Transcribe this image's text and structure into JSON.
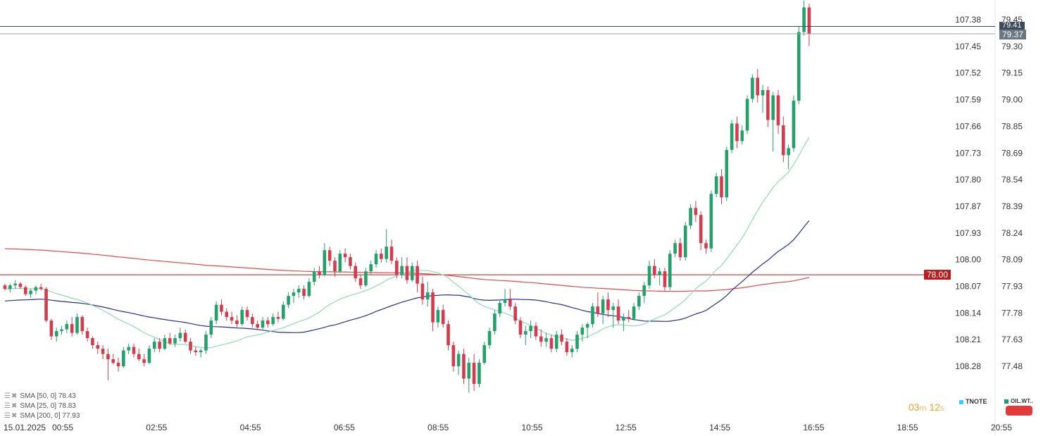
{
  "chart_data": {
    "type": "candlestick",
    "date_label": "15.01.2025",
    "x_ticks": [
      "00:55",
      "02:55",
      "04:55",
      "06:55",
      "08:55",
      "10:55",
      "12:55",
      "14:55",
      "16:55",
      "18:55",
      "20:55"
    ],
    "left_axis": {
      "ticks": [
        "107.38",
        "107.45",
        "107.52",
        "107.59",
        "107.66",
        "107.73",
        "107.80",
        "107.87",
        "107.93",
        "108.00",
        "108.07",
        "108.14",
        "108.21",
        "108.28"
      ],
      "inverted": true
    },
    "right_axis": {
      "ticks": [
        "79.45",
        "79.30",
        "79.15",
        "79.00",
        "78.85",
        "78.69",
        "78.54",
        "78.39",
        "78.24",
        "78.09",
        "77.93",
        "77.78",
        "77.63",
        "77.48"
      ],
      "ylim": [
        77.33,
        79.56
      ]
    },
    "last_price_labels": [
      "79.41",
      "79.37"
    ],
    "horizontal_level": "78.00",
    "indicators": [
      {
        "label": "SMA [50, 0] 78.43",
        "period": 50,
        "value": 78.43,
        "color": "#2a2f8a"
      },
      {
        "label": "SMA [25, 0] 78.83",
        "period": 25,
        "value": 78.83,
        "color": "#8fd9b6"
      },
      {
        "label": "SMA [200, 0] 77.93",
        "period": 200,
        "value": 77.93,
        "color": "#e04a4a"
      }
    ],
    "candles": [
      [
        77.94,
        77.95,
        77.91,
        77.92
      ],
      [
        77.92,
        77.95,
        77.9,
        77.94
      ],
      [
        77.94,
        77.97,
        77.92,
        77.95
      ],
      [
        77.95,
        77.96,
        77.92,
        77.93
      ],
      [
        77.93,
        77.94,
        77.88,
        77.89
      ],
      [
        77.89,
        77.92,
        77.87,
        77.91
      ],
      [
        77.91,
        77.94,
        77.89,
        77.93
      ],
      [
        77.93,
        77.95,
        77.91,
        77.92
      ],
      [
        77.92,
        77.93,
        77.73,
        77.74
      ],
      [
        77.74,
        77.75,
        77.63,
        77.65
      ],
      [
        77.65,
        77.7,
        77.62,
        77.68
      ],
      [
        77.68,
        77.71,
        77.66,
        77.69
      ],
      [
        77.69,
        77.74,
        77.67,
        77.72
      ],
      [
        77.72,
        77.76,
        77.65,
        77.67
      ],
      [
        77.67,
        77.78,
        77.66,
        77.76
      ],
      [
        77.76,
        77.77,
        77.66,
        77.68
      ],
      [
        77.68,
        77.7,
        77.62,
        77.64
      ],
      [
        77.64,
        77.65,
        77.58,
        77.6
      ],
      [
        77.6,
        77.62,
        77.55,
        77.58
      ],
      [
        77.58,
        77.6,
        77.52,
        77.55
      ],
      [
        77.55,
        77.58,
        77.4,
        77.52
      ],
      [
        77.52,
        77.55,
        77.49,
        77.5
      ],
      [
        77.5,
        77.53,
        77.45,
        77.48
      ],
      [
        77.48,
        77.59,
        77.47,
        77.57
      ],
      [
        77.57,
        77.61,
        77.55,
        77.59
      ],
      [
        77.59,
        77.61,
        77.53,
        77.55
      ],
      [
        77.55,
        77.58,
        77.51,
        77.52
      ],
      [
        77.52,
        77.55,
        77.48,
        77.5
      ],
      [
        77.5,
        77.6,
        77.49,
        77.58
      ],
      [
        77.58,
        77.64,
        77.56,
        77.62
      ],
      [
        77.62,
        77.64,
        77.56,
        77.58
      ],
      [
        77.58,
        77.66,
        77.57,
        77.64
      ],
      [
        77.64,
        77.67,
        77.6,
        77.61
      ],
      [
        77.61,
        77.66,
        77.59,
        77.64
      ],
      [
        77.64,
        77.7,
        77.62,
        77.67
      ],
      [
        77.67,
        77.69,
        77.61,
        77.62
      ],
      [
        77.62,
        77.64,
        77.55,
        77.57
      ],
      [
        77.57,
        77.59,
        77.54,
        77.56
      ],
      [
        77.56,
        77.58,
        77.53,
        77.57
      ],
      [
        77.57,
        77.68,
        77.55,
        77.66
      ],
      [
        77.66,
        77.76,
        77.64,
        77.74
      ],
      [
        77.74,
        77.85,
        77.72,
        77.83
      ],
      [
        77.83,
        77.86,
        77.77,
        77.79
      ],
      [
        77.79,
        77.81,
        77.74,
        77.76
      ],
      [
        77.76,
        77.79,
        77.72,
        77.74
      ],
      [
        77.74,
        77.77,
        77.7,
        77.72
      ],
      [
        77.72,
        77.82,
        77.71,
        77.8
      ],
      [
        77.8,
        77.82,
        77.74,
        77.76
      ],
      [
        77.76,
        77.78,
        77.7,
        77.72
      ],
      [
        77.72,
        77.74,
        77.69,
        77.7
      ],
      [
        77.7,
        77.76,
        77.69,
        77.74
      ],
      [
        77.74,
        77.76,
        77.7,
        77.72
      ],
      [
        77.72,
        77.78,
        77.71,
        77.76
      ],
      [
        77.76,
        77.79,
        77.73,
        77.75
      ],
      [
        77.75,
        77.85,
        77.74,
        77.83
      ],
      [
        77.83,
        77.9,
        77.81,
        77.88
      ],
      [
        77.88,
        77.92,
        77.84,
        77.9
      ],
      [
        77.9,
        77.94,
        77.87,
        77.92
      ],
      [
        77.92,
        77.94,
        77.86,
        77.88
      ],
      [
        77.88,
        77.98,
        77.87,
        77.96
      ],
      [
        77.96,
        78.04,
        77.94,
        78.02
      ],
      [
        78.02,
        78.05,
        77.98,
        78.0
      ],
      [
        78.0,
        78.18,
        77.99,
        78.14
      ],
      [
        78.14,
        78.16,
        78.05,
        78.08
      ],
      [
        78.08,
        78.1,
        77.99,
        78.02
      ],
      [
        78.02,
        78.14,
        78.01,
        78.12
      ],
      [
        78.12,
        78.15,
        78.07,
        78.1
      ],
      [
        78.1,
        78.12,
        78.03,
        78.05
      ],
      [
        78.05,
        78.07,
        77.96,
        77.98
      ],
      [
        77.98,
        78.0,
        77.92,
        77.94
      ],
      [
        77.94,
        78.04,
        77.93,
        78.02
      ],
      [
        78.02,
        78.08,
        78.0,
        78.06
      ],
      [
        78.06,
        78.14,
        78.04,
        78.12
      ],
      [
        78.12,
        78.15,
        78.07,
        78.09
      ],
      [
        78.09,
        78.26,
        78.07,
        78.16
      ],
      [
        78.16,
        78.2,
        78.06,
        78.08
      ],
      [
        78.08,
        78.1,
        77.98,
        78.0
      ],
      [
        78.0,
        78.1,
        77.98,
        78.05
      ],
      [
        78.05,
        78.1,
        77.95,
        77.97
      ],
      [
        77.97,
        78.07,
        77.96,
        78.05
      ],
      [
        78.05,
        78.08,
        77.9,
        77.95
      ],
      [
        77.95,
        77.99,
        77.83,
        77.86
      ],
      [
        77.86,
        77.96,
        77.82,
        77.9
      ],
      [
        77.9,
        77.92,
        77.68,
        77.73
      ],
      [
        77.73,
        77.82,
        77.7,
        77.8
      ],
      [
        77.8,
        77.83,
        77.7,
        77.72
      ],
      [
        77.72,
        77.74,
        77.57,
        77.6
      ],
      [
        77.6,
        77.62,
        77.45,
        77.48
      ],
      [
        77.48,
        77.57,
        77.43,
        77.55
      ],
      [
        77.55,
        77.58,
        77.38,
        77.41
      ],
      [
        77.41,
        77.53,
        77.33,
        77.5
      ],
      [
        77.5,
        77.55,
        77.34,
        77.38
      ],
      [
        77.38,
        77.52,
        77.36,
        77.5
      ],
      [
        77.5,
        77.62,
        77.49,
        77.6
      ],
      [
        77.6,
        77.7,
        77.58,
        77.68
      ],
      [
        77.68,
        77.8,
        77.66,
        77.78
      ],
      [
        77.78,
        77.86,
        77.76,
        77.84
      ],
      [
        77.84,
        77.92,
        77.82,
        77.86
      ],
      [
        77.86,
        77.92,
        77.8,
        77.82
      ],
      [
        77.82,
        77.84,
        77.72,
        77.74
      ],
      [
        77.74,
        77.76,
        77.64,
        77.66
      ],
      [
        77.66,
        77.71,
        77.6,
        77.68
      ],
      [
        77.68,
        77.74,
        77.64,
        77.71
      ],
      [
        77.71,
        77.73,
        77.63,
        77.65
      ],
      [
        77.65,
        77.69,
        77.59,
        77.62
      ],
      [
        77.62,
        77.67,
        77.59,
        77.64
      ],
      [
        77.64,
        77.66,
        77.56,
        77.58
      ],
      [
        77.58,
        77.68,
        77.56,
        77.66
      ],
      [
        77.66,
        77.69,
        77.6,
        77.62
      ],
      [
        77.62,
        77.64,
        77.54,
        77.56
      ],
      [
        77.56,
        77.6,
        77.53,
        77.58
      ],
      [
        77.58,
        77.68,
        77.56,
        77.66
      ],
      [
        77.66,
        77.72,
        77.62,
        77.7
      ],
      [
        77.7,
        77.73,
        77.64,
        77.72
      ],
      [
        77.72,
        77.84,
        77.7,
        77.82
      ],
      [
        77.82,
        77.9,
        77.76,
        77.78
      ],
      [
        77.78,
        77.88,
        77.72,
        77.86
      ],
      [
        77.86,
        77.9,
        77.76,
        77.8
      ],
      [
        77.8,
        77.84,
        77.7,
        77.82
      ],
      [
        77.82,
        77.86,
        77.72,
        77.74
      ],
      [
        77.74,
        77.78,
        77.68,
        77.76
      ],
      [
        77.76,
        77.8,
        77.73,
        77.75
      ],
      [
        77.75,
        77.84,
        77.74,
        77.82
      ],
      [
        77.82,
        77.9,
        77.8,
        77.88
      ],
      [
        77.88,
        77.96,
        77.84,
        77.94
      ],
      [
        77.94,
        78.08,
        77.92,
        78.05
      ],
      [
        78.05,
        78.09,
        77.98,
        78.0
      ],
      [
        78.0,
        78.04,
        77.94,
        78.02
      ],
      [
        78.02,
        78.04,
        77.91,
        77.93
      ],
      [
        77.93,
        78.14,
        77.91,
        78.12
      ],
      [
        78.12,
        78.2,
        78.1,
        78.18
      ],
      [
        78.18,
        78.21,
        78.08,
        78.1
      ],
      [
        78.1,
        78.3,
        78.08,
        78.28
      ],
      [
        78.28,
        78.4,
        78.26,
        78.38
      ],
      [
        78.38,
        78.42,
        78.3,
        78.34
      ],
      [
        78.34,
        78.36,
        78.14,
        78.18
      ],
      [
        78.18,
        78.2,
        78.12,
        78.15
      ],
      [
        78.15,
        78.48,
        78.13,
        78.46
      ],
      [
        78.46,
        78.58,
        78.44,
        78.56
      ],
      [
        78.56,
        78.6,
        78.4,
        78.44
      ],
      [
        78.44,
        78.73,
        78.42,
        78.71
      ],
      [
        78.71,
        78.88,
        78.69,
        78.86
      ],
      [
        78.86,
        78.9,
        78.72,
        78.76
      ],
      [
        78.76,
        78.85,
        78.74,
        78.82
      ],
      [
        78.82,
        79.02,
        78.8,
        79.0
      ],
      [
        79.0,
        79.14,
        78.98,
        79.12
      ],
      [
        79.12,
        79.17,
        78.98,
        79.02
      ],
      [
        79.02,
        79.08,
        78.92,
        79.05
      ],
      [
        79.05,
        79.07,
        78.84,
        78.88
      ],
      [
        78.88,
        79.04,
        78.7,
        79.02
      ],
      [
        79.02,
        79.05,
        78.8,
        78.85
      ],
      [
        78.85,
        78.9,
        78.64,
        78.68
      ],
      [
        78.68,
        78.74,
        78.6,
        78.72
      ],
      [
        78.72,
        79.02,
        78.7,
        78.99
      ],
      [
        78.99,
        79.41,
        78.97,
        79.38
      ],
      [
        79.38,
        79.56,
        79.36,
        79.52
      ],
      [
        79.52,
        79.54,
        79.3,
        79.37
      ]
    ]
  },
  "footer": {
    "timer": {
      "minutes": "03",
      "m": "m",
      "seconds": "12",
      "s": "s"
    },
    "instruments": [
      "TNOTE",
      "OIL.WT.."
    ]
  },
  "colors": {
    "bull": "#24a06b",
    "bear": "#d43b4e",
    "level": "#b91c1c",
    "price_tag": "#3d4a5c",
    "tnote_swatch": "#4fc3f7",
    "oil_swatch": "#1e9e6e"
  }
}
